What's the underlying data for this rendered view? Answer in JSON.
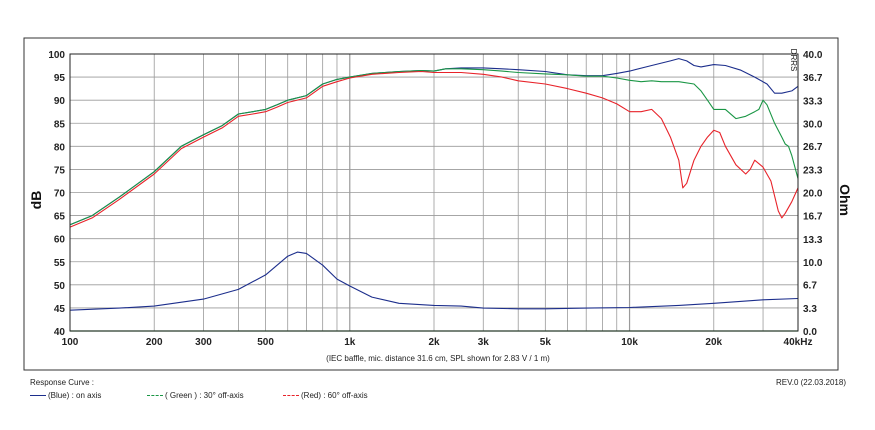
{
  "chart_data": {
    "type": "line",
    "title": "",
    "note": "(IEC baffle, mic. distance 31.6 cm, SPL shown for 2.83 V / 1 m)",
    "watermark": "DRRS",
    "x_scale": "log",
    "xlim": [
      100,
      40000
    ],
    "x_ticks": [
      {
        "value": 100,
        "label": "100"
      },
      {
        "value": 200,
        "label": "200"
      },
      {
        "value": 300,
        "label": "300"
      },
      {
        "value": 500,
        "label": "500"
      },
      {
        "value": 1000,
        "label": "1k"
      },
      {
        "value": 2000,
        "label": "2k"
      },
      {
        "value": 3000,
        "label": "3k"
      },
      {
        "value": 5000,
        "label": "5k"
      },
      {
        "value": 10000,
        "label": "10k"
      },
      {
        "value": 20000,
        "label": "20k"
      },
      {
        "value": 40000,
        "label": "40kHz"
      }
    ],
    "ylabel": "dB",
    "ylim": [
      40,
      100
    ],
    "y_ticks": [
      "40",
      "45",
      "50",
      "55",
      "60",
      "65",
      "70",
      "75",
      "80",
      "85",
      "90",
      "95",
      "100"
    ],
    "y2label": "Ohm",
    "y2lim": [
      0,
      40
    ],
    "y2_ticks": [
      "0.0",
      "3.3",
      "6.7",
      "10.0",
      "13.3",
      "16.7",
      "20.0",
      "23.3",
      "26.7",
      "30.0",
      "33.3",
      "36.7",
      "40.0"
    ],
    "grid": true,
    "series": [
      {
        "name": "(Blue)  : on axis",
        "color": "#1c2e8c",
        "axis": "left",
        "points": [
          [
            100,
            63
          ],
          [
            120,
            65
          ],
          [
            150,
            69
          ],
          [
            200,
            74.5
          ],
          [
            250,
            80
          ],
          [
            300,
            82.5
          ],
          [
            350,
            84.5
          ],
          [
            400,
            87
          ],
          [
            450,
            87.5
          ],
          [
            500,
            88
          ],
          [
            550,
            89
          ],
          [
            600,
            90
          ],
          [
            700,
            91
          ],
          [
            800,
            93.5
          ],
          [
            900,
            94.5
          ],
          [
            1000,
            95
          ],
          [
            1200,
            95.8
          ],
          [
            1500,
            96.2
          ],
          [
            1800,
            96.4
          ],
          [
            2000,
            96.3
          ],
          [
            2200,
            96.8
          ],
          [
            2500,
            97
          ],
          [
            3000,
            97
          ],
          [
            3500,
            96.8
          ],
          [
            4000,
            96.6
          ],
          [
            5000,
            96.2
          ],
          [
            6000,
            95.5
          ],
          [
            7000,
            95.3
          ],
          [
            8000,
            95.3
          ],
          [
            9000,
            95.8
          ],
          [
            10000,
            96.3
          ],
          [
            12000,
            97.5
          ],
          [
            14000,
            98.5
          ],
          [
            15000,
            99
          ],
          [
            16000,
            98.5
          ],
          [
            17000,
            97.5
          ],
          [
            18000,
            97.2
          ],
          [
            20000,
            97.7
          ],
          [
            22000,
            97.5
          ],
          [
            25000,
            96.5
          ],
          [
            28000,
            95
          ],
          [
            31000,
            93.5
          ],
          [
            33000,
            91.5
          ],
          [
            35000,
            91.5
          ],
          [
            38000,
            92
          ],
          [
            40000,
            93
          ]
        ]
      },
      {
        "name": "( Green ) : 30° off-axis",
        "color": "#1a9645",
        "axis": "left",
        "points": [
          [
            100,
            63
          ],
          [
            120,
            65
          ],
          [
            150,
            69
          ],
          [
            200,
            74.5
          ],
          [
            250,
            80
          ],
          [
            300,
            82.5
          ],
          [
            350,
            84.5
          ],
          [
            400,
            87
          ],
          [
            450,
            87.5
          ],
          [
            500,
            88
          ],
          [
            550,
            89
          ],
          [
            600,
            90
          ],
          [
            700,
            91
          ],
          [
            800,
            93.5
          ],
          [
            900,
            94.5
          ],
          [
            1000,
            95
          ],
          [
            1200,
            95.8
          ],
          [
            1500,
            96.2
          ],
          [
            1800,
            96.4
          ],
          [
            2000,
            96.3
          ],
          [
            2200,
            96.8
          ],
          [
            2500,
            96.8
          ],
          [
            3000,
            96.6
          ],
          [
            3500,
            96.3
          ],
          [
            4000,
            96
          ],
          [
            5000,
            95.7
          ],
          [
            6000,
            95.5
          ],
          [
            7000,
            95.2
          ],
          [
            8000,
            95.2
          ],
          [
            9000,
            94.8
          ],
          [
            10000,
            94.3
          ],
          [
            11000,
            94
          ],
          [
            12000,
            94.2
          ],
          [
            13000,
            94
          ],
          [
            15000,
            94
          ],
          [
            17000,
            93.5
          ],
          [
            18000,
            92
          ],
          [
            19000,
            90
          ],
          [
            20000,
            88
          ],
          [
            22000,
            88
          ],
          [
            24000,
            86
          ],
          [
            26000,
            86.5
          ],
          [
            28000,
            87.5
          ],
          [
            29000,
            88
          ],
          [
            30000,
            90
          ],
          [
            31000,
            89
          ],
          [
            33000,
            85
          ],
          [
            35000,
            82
          ],
          [
            36000,
            80.5
          ],
          [
            37000,
            80
          ],
          [
            38000,
            78
          ],
          [
            40000,
            73
          ]
        ]
      },
      {
        "name": "(Red) : 60° off-axis",
        "color": "#e8232a",
        "axis": "left",
        "points": [
          [
            100,
            62.5
          ],
          [
            120,
            64.5
          ],
          [
            150,
            68.5
          ],
          [
            200,
            74
          ],
          [
            250,
            79.5
          ],
          [
            300,
            82
          ],
          [
            350,
            84
          ],
          [
            400,
            86.5
          ],
          [
            450,
            87
          ],
          [
            500,
            87.5
          ],
          [
            550,
            88.5
          ],
          [
            600,
            89.5
          ],
          [
            700,
            90.5
          ],
          [
            800,
            93
          ],
          [
            900,
            94
          ],
          [
            1000,
            94.8
          ],
          [
            1200,
            95.6
          ],
          [
            1500,
            96
          ],
          [
            1800,
            96.2
          ],
          [
            2000,
            96
          ],
          [
            2500,
            96
          ],
          [
            3000,
            95.6
          ],
          [
            3500,
            95
          ],
          [
            4000,
            94.2
          ],
          [
            5000,
            93.5
          ],
          [
            6000,
            92.5
          ],
          [
            7000,
            91.5
          ],
          [
            8000,
            90.5
          ],
          [
            9000,
            89.2
          ],
          [
            10000,
            87.5
          ],
          [
            11000,
            87.5
          ],
          [
            12000,
            88
          ],
          [
            13000,
            86
          ],
          [
            14000,
            82
          ],
          [
            15000,
            77
          ],
          [
            15500,
            71
          ],
          [
            16000,
            72
          ],
          [
            17000,
            77
          ],
          [
            18000,
            80
          ],
          [
            19000,
            82
          ],
          [
            20000,
            83.5
          ],
          [
            21000,
            83
          ],
          [
            22000,
            80
          ],
          [
            24000,
            76
          ],
          [
            26000,
            74
          ],
          [
            27000,
            75
          ],
          [
            28000,
            77
          ],
          [
            30000,
            75.5
          ],
          [
            32000,
            72.5
          ],
          [
            34000,
            66
          ],
          [
            35000,
            64.5
          ],
          [
            36000,
            65.5
          ],
          [
            38000,
            68
          ],
          [
            40000,
            71
          ]
        ]
      },
      {
        "name": "impedance",
        "color": "#1c2e8c",
        "axis": "right",
        "points": [
          [
            100,
            3.0
          ],
          [
            150,
            3.3
          ],
          [
            200,
            3.6
          ],
          [
            300,
            4.6
          ],
          [
            400,
            6.0
          ],
          [
            500,
            8.1
          ],
          [
            600,
            10.8
          ],
          [
            650,
            11.4
          ],
          [
            700,
            11.2
          ],
          [
            800,
            9.5
          ],
          [
            900,
            7.5
          ],
          [
            1000,
            6.5
          ],
          [
            1200,
            4.9
          ],
          [
            1500,
            4.0
          ],
          [
            2000,
            3.7
          ],
          [
            2500,
            3.6
          ],
          [
            3000,
            3.3
          ],
          [
            4000,
            3.2
          ],
          [
            5000,
            3.2
          ],
          [
            7000,
            3.3
          ],
          [
            10000,
            3.4
          ],
          [
            15000,
            3.7
          ],
          [
            20000,
            4.0
          ],
          [
            30000,
            4.5
          ],
          [
            40000,
            4.7
          ]
        ]
      }
    ]
  },
  "legend": {
    "heading": "Response Curve :",
    "revision": "REV.0 (22.03.2018)",
    "items": [
      {
        "label": "(Blue)  : on axis",
        "color": "#1c2e8c",
        "dashed": false
      },
      {
        "label": "( Green ) : 30° off-axis",
        "color": "#1a9645",
        "dashed": true
      },
      {
        "label": "(Red) : 60° off-axis",
        "color": "#e8232a",
        "dashed": true
      }
    ]
  }
}
